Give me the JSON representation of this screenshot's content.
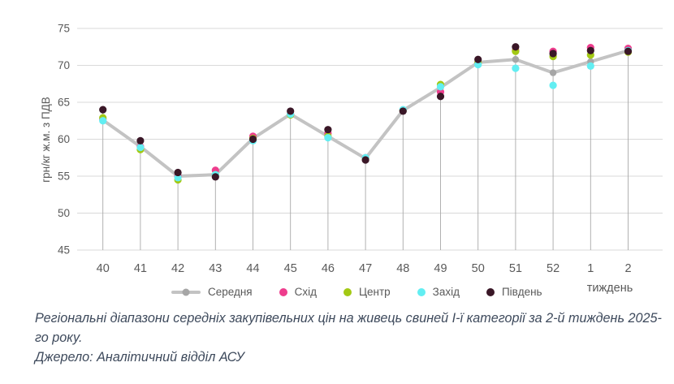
{
  "figure": {
    "caption": "Регіональні діапазони середніх закупівельних цін на живець свиней І-ї категорії за 2-й тиждень 2025-го року.",
    "source": "Джерело: Аналітичний відділ АСУ"
  },
  "chart_data": {
    "type": "line",
    "title": "",
    "categories": [
      "40",
      "41",
      "42",
      "43",
      "44",
      "45",
      "46",
      "47",
      "48",
      "49",
      "50",
      "51",
      "52",
      "1",
      "2"
    ],
    "xlabel": "тиждень",
    "ylabel": "грн/кг ж.м. з ПДВ",
    "ylim": [
      45,
      75
    ],
    "yticks": [
      45,
      50,
      55,
      60,
      65,
      70,
      75
    ],
    "grid": true,
    "legend_position": "bottom",
    "series": [
      {
        "name": "Середня",
        "style": "line",
        "color": "#c3c3c3",
        "marker_color": "#a6a6a6",
        "values": [
          62.6,
          59.0,
          55.0,
          55.2,
          60.1,
          63.4,
          60.4,
          57.4,
          63.9,
          67.0,
          70.4,
          70.8,
          69.0,
          70.5,
          72.0
        ]
      },
      {
        "name": "Схід",
        "style": "scatter",
        "color": "#ee3d8d",
        "values": [
          62.7,
          59.0,
          55.0,
          55.8,
          60.4,
          63.4,
          60.8,
          57.5,
          63.9,
          66.4,
          70.4,
          72.0,
          71.9,
          72.4,
          72.3
        ]
      },
      {
        "name": "Центр",
        "style": "scatter",
        "color": "#a3c914",
        "values": [
          62.9,
          58.6,
          54.5,
          55.2,
          60.1,
          63.3,
          60.4,
          57.4,
          63.9,
          67.4,
          70.4,
          71.9,
          71.2,
          71.4,
          71.8
        ]
      },
      {
        "name": "Захід",
        "style": "scatter",
        "color": "#62eef2",
        "values": [
          62.5,
          58.9,
          54.8,
          55.2,
          59.8,
          63.4,
          60.2,
          57.5,
          64.0,
          67.1,
          70.1,
          69.6,
          67.3,
          69.9,
          72.0
        ]
      },
      {
        "name": "Південь",
        "style": "scatter",
        "color": "#3a1727",
        "values": [
          64.0,
          59.8,
          55.5,
          54.9,
          60.0,
          63.8,
          61.3,
          57.2,
          63.8,
          65.8,
          70.8,
          72.5,
          71.6,
          72.0,
          71.9
        ]
      }
    ]
  },
  "colors": {
    "grid": "#d9d9d9",
    "drop_line": "#a9a9a9",
    "tick_text": "#595959",
    "caption_text": "#3e4a5c"
  }
}
